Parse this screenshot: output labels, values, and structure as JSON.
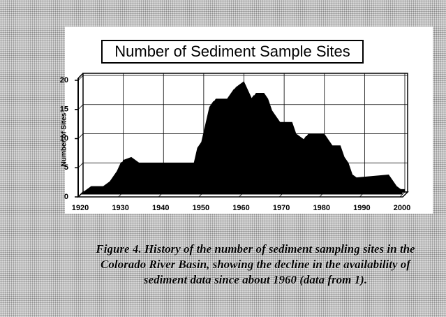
{
  "chart_data": {
    "type": "area",
    "title": "Number of Sediment Sample Sites",
    "ylabel": "Number of Sites",
    "x": [
      1920,
      1922,
      1925,
      1927,
      1929,
      1930,
      1932,
      1934,
      1940,
      1948,
      1949,
      1950,
      1951,
      1952,
      1953,
      1956,
      1957,
      1958,
      1959,
      1960,
      1961,
      1962,
      1963,
      1965,
      1966,
      1967,
      1968,
      1969,
      1972,
      1973,
      1975,
      1976,
      1980,
      1982,
      1984,
      1985,
      1986,
      1987,
      1988,
      1996,
      1998,
      1999,
      2000
    ],
    "values": [
      0,
      1,
      1,
      2,
      4,
      5.5,
      6,
      5,
      5,
      5,
      8,
      9,
      12,
      15,
      16,
      16,
      17,
      18,
      18.5,
      19,
      17.5,
      16,
      17,
      17,
      16,
      14,
      13,
      12,
      12,
      10,
      9,
      10,
      10,
      8,
      8,
      6,
      5,
      3,
      2.5,
      3,
      1,
      0.5,
      0.5
    ],
    "color": "#000000",
    "xlim": [
      1920,
      2000
    ],
    "xticks": [
      1920,
      1930,
      1940,
      1950,
      1960,
      1970,
      1980,
      1990,
      2000
    ],
    "ylim": [
      0,
      20
    ],
    "yticks": [
      0,
      5,
      10,
      15,
      20
    ],
    "grid": true
  },
  "caption": [
    "Figure 4.  History of the number of sediment sampling sites in the",
    "Colorado River Basin, showing the decline in the availability of",
    "sediment data since about 1960 (data from 1)."
  ]
}
